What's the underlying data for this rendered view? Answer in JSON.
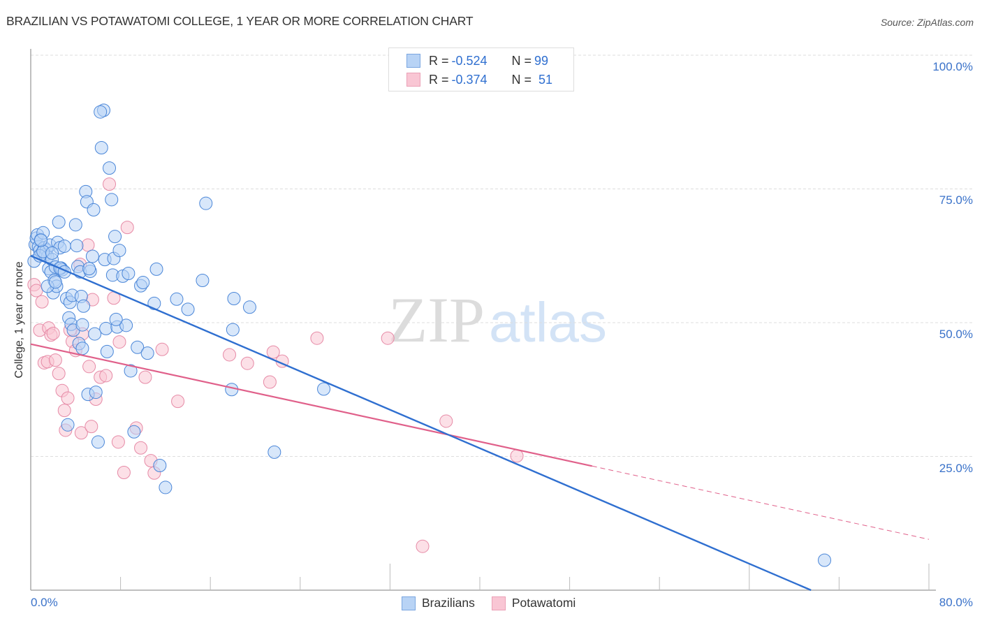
{
  "header": {
    "title": "BRAZILIAN VS POTAWATOMI COLLEGE, 1 YEAR OR MORE CORRELATION CHART",
    "source": "Source: ZipAtlas.com"
  },
  "watermark": {
    "zip": "ZIP",
    "atlas": "atlas"
  },
  "legend_top": {
    "rows": [
      {
        "r_label": "R = ",
        "r_value": "-0.524",
        "n_label": "N = ",
        "n_value": "99"
      },
      {
        "r_label": "R = ",
        "r_value": "-0.374",
        "n_label": "N = ",
        "n_value": "51"
      }
    ]
  },
  "legend_bottom": {
    "items": [
      {
        "label": "Brazilians"
      },
      {
        "label": "Potawatomi"
      }
    ]
  },
  "axes": {
    "ylabel": "College, 1 year or more",
    "yticks": [
      "100.0%",
      "75.0%",
      "50.0%",
      "25.0%"
    ],
    "xtick_left": "0.0%",
    "xtick_right": "80.0%"
  },
  "colors": {
    "brazilians_fill": "#b8d3f5",
    "brazilians_stroke": "#4a86d8",
    "brazilians_line": "#2f6fd0",
    "potawatomi_fill": "#f9c6d4",
    "potawatomi_stroke": "#e68aa6",
    "potawatomi_line": "#e0608a",
    "tick_text": "#3a72c9"
  },
  "chart_data": {
    "type": "scatter",
    "title": "BRAZILIAN VS POTAWATOMI COLLEGE, 1 YEAR OR MORE CORRELATION CHART",
    "xlabel": "",
    "ylabel": "College, 1 year or more",
    "xlim": [
      0,
      80
    ],
    "ylim": [
      0,
      100
    ],
    "x_tick_labels": [
      "0.0%",
      "80.0%"
    ],
    "y_tick_labels": [
      "25.0%",
      "50.0%",
      "75.0%",
      "100.0%"
    ],
    "grid": "horizontal dashed",
    "legend_position": "bottom-center",
    "series": [
      {
        "name": "Brazilians",
        "R": -0.524,
        "N": 99,
        "trend": {
          "x0": 0,
          "y0": 62.5,
          "x1": 69.5,
          "y1": 0
        },
        "points": [
          [
            0.4,
            64.6
          ],
          [
            0.5,
            65.8
          ],
          [
            0.6,
            66.4
          ],
          [
            0.7,
            64.2
          ],
          [
            0.8,
            63.5
          ],
          [
            0.9,
            65.5
          ],
          [
            1.0,
            63.0
          ],
          [
            1.1,
            66.8
          ],
          [
            1.2,
            64.0
          ],
          [
            1.3,
            62.7
          ],
          [
            1.4,
            63.6
          ],
          [
            1.5,
            62.3
          ],
          [
            1.6,
            60.1
          ],
          [
            1.7,
            64.5
          ],
          [
            1.8,
            59.5
          ],
          [
            1.9,
            61.8
          ],
          [
            2.0,
            55.6
          ],
          [
            2.1,
            57.9
          ],
          [
            2.2,
            60.4
          ],
          [
            2.3,
            56.8
          ],
          [
            2.4,
            65.0
          ],
          [
            2.5,
            68.8
          ],
          [
            2.6,
            64.0
          ],
          [
            2.7,
            60.2
          ],
          [
            2.8,
            59.9
          ],
          [
            3.0,
            64.3
          ],
          [
            3.2,
            54.5
          ],
          [
            3.4,
            50.9
          ],
          [
            3.5,
            53.8
          ],
          [
            3.6,
            49.7
          ],
          [
            3.7,
            55.1
          ],
          [
            3.8,
            48.6
          ],
          [
            4.0,
            68.3
          ],
          [
            4.1,
            64.4
          ],
          [
            4.2,
            60.5
          ],
          [
            4.3,
            46.1
          ],
          [
            4.4,
            59.5
          ],
          [
            4.5,
            54.9
          ],
          [
            4.6,
            45.2
          ],
          [
            4.7,
            53.1
          ],
          [
            4.9,
            74.5
          ],
          [
            5.0,
            72.6
          ],
          [
            5.1,
            36.6
          ],
          [
            5.3,
            59.6
          ],
          [
            5.5,
            62.4
          ],
          [
            5.6,
            71.1
          ],
          [
            5.7,
            47.9
          ],
          [
            5.8,
            37.0
          ],
          [
            6.0,
            27.7
          ],
          [
            6.3,
            82.7
          ],
          [
            6.5,
            89.7
          ],
          [
            6.6,
            61.8
          ],
          [
            6.7,
            48.9
          ],
          [
            6.8,
            44.6
          ],
          [
            7.0,
            78.9
          ],
          [
            7.2,
            73.0
          ],
          [
            7.3,
            58.9
          ],
          [
            7.4,
            62.0
          ],
          [
            7.5,
            66.1
          ],
          [
            7.7,
            49.2
          ],
          [
            7.9,
            63.5
          ],
          [
            8.2,
            58.7
          ],
          [
            8.5,
            49.5
          ],
          [
            8.7,
            59.2
          ],
          [
            8.9,
            41.0
          ],
          [
            9.2,
            29.6
          ],
          [
            9.5,
            45.4
          ],
          [
            9.8,
            56.9
          ],
          [
            10.0,
            57.5
          ],
          [
            10.4,
            44.3
          ],
          [
            11.0,
            53.6
          ],
          [
            11.2,
            60.0
          ],
          [
            11.5,
            23.3
          ],
          [
            12.0,
            19.2
          ],
          [
            13.0,
            54.4
          ],
          [
            14.0,
            52.5
          ],
          [
            15.3,
            57.9
          ],
          [
            15.6,
            72.3
          ],
          [
            17.9,
            37.5
          ],
          [
            18.0,
            48.7
          ],
          [
            18.1,
            54.5
          ],
          [
            19.5,
            52.9
          ],
          [
            21.7,
            25.8
          ],
          [
            26.1,
            37.6
          ],
          [
            70.7,
            5.6
          ],
          [
            0.3,
            61.5
          ],
          [
            0.8,
            62.5
          ],
          [
            1.1,
            63.3
          ],
          [
            1.9,
            63.0
          ],
          [
            2.6,
            60.2
          ],
          [
            3.0,
            59.5
          ],
          [
            6.2,
            89.4
          ],
          [
            3.3,
            30.9
          ],
          [
            1.5,
            56.8
          ],
          [
            4.6,
            49.6
          ],
          [
            7.6,
            50.6
          ],
          [
            2.2,
            57.6
          ],
          [
            0.9,
            65.4
          ],
          [
            5.2,
            60.1
          ]
        ]
      },
      {
        "name": "Potawatomi",
        "R": -0.374,
        "N": 51,
        "trend": {
          "x0": 0,
          "y0": 46.0,
          "x1": 50.0,
          "y1": 23.2,
          "dashed_extension_to": {
            "x": 80,
            "y": 9.5
          }
        },
        "points": [
          [
            0.3,
            57.1
          ],
          [
            0.5,
            56.0
          ],
          [
            0.8,
            48.6
          ],
          [
            1.0,
            53.9
          ],
          [
            1.2,
            42.5
          ],
          [
            1.5,
            42.7
          ],
          [
            1.6,
            49.0
          ],
          [
            1.8,
            47.7
          ],
          [
            2.0,
            48.0
          ],
          [
            2.2,
            43.0
          ],
          [
            2.5,
            40.5
          ],
          [
            2.8,
            37.3
          ],
          [
            3.0,
            33.6
          ],
          [
            3.1,
            29.9
          ],
          [
            3.3,
            35.9
          ],
          [
            3.5,
            48.6
          ],
          [
            3.7,
            46.5
          ],
          [
            4.0,
            44.8
          ],
          [
            4.4,
            60.9
          ],
          [
            4.5,
            29.4
          ],
          [
            4.6,
            47.9
          ],
          [
            5.1,
            64.5
          ],
          [
            5.2,
            41.8
          ],
          [
            5.4,
            30.6
          ],
          [
            5.5,
            54.3
          ],
          [
            5.8,
            35.7
          ],
          [
            6.2,
            39.8
          ],
          [
            6.7,
            40.1
          ],
          [
            7.0,
            75.9
          ],
          [
            7.4,
            54.6
          ],
          [
            7.8,
            27.7
          ],
          [
            7.9,
            46.4
          ],
          [
            8.3,
            22.0
          ],
          [
            8.6,
            67.8
          ],
          [
            9.4,
            30.3
          ],
          [
            9.8,
            26.6
          ],
          [
            10.2,
            39.8
          ],
          [
            10.7,
            24.2
          ],
          [
            11.0,
            21.9
          ],
          [
            11.7,
            45.0
          ],
          [
            13.1,
            35.3
          ],
          [
            17.7,
            44.0
          ],
          [
            19.3,
            42.4
          ],
          [
            21.3,
            38.9
          ],
          [
            21.6,
            44.5
          ],
          [
            22.4,
            42.8
          ],
          [
            25.5,
            47.1
          ],
          [
            31.8,
            47.1
          ],
          [
            34.9,
            8.2
          ],
          [
            37.0,
            31.6
          ],
          [
            43.3,
            25.1
          ]
        ]
      }
    ]
  }
}
